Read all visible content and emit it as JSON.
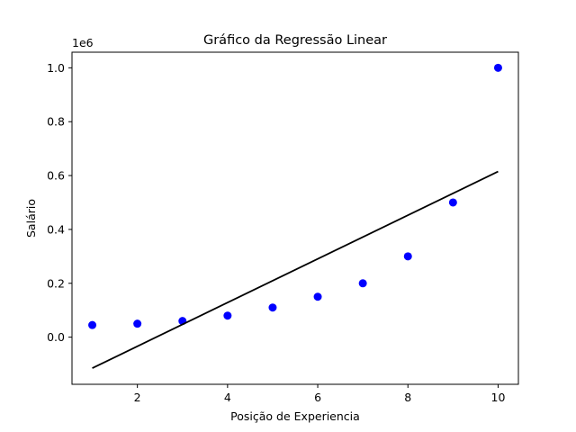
{
  "chart_data": {
    "type": "scatter",
    "title": "Gráfico da Regressão Linear",
    "xlabel": "Posição de Experiencia",
    "ylabel": "Salário",
    "y_offset_label": "1e6",
    "xlim": [
      0.55,
      10.45
    ],
    "ylim": [
      -0.175,
      1.058
    ],
    "x_ticks": [
      2,
      4,
      6,
      8,
      10
    ],
    "x_tick_labels": [
      "2",
      "4",
      "6",
      "8",
      "10"
    ],
    "y_ticks": [
      0.0,
      0.2,
      0.4,
      0.6,
      0.8,
      1.0
    ],
    "y_tick_labels": [
      "0.0",
      "0.2",
      "0.4",
      "0.6",
      "0.8",
      "1.0"
    ],
    "grid": false,
    "series": [
      {
        "type": "scatter",
        "color": "#0000ff",
        "x": [
          1,
          2,
          3,
          4,
          5,
          6,
          7,
          8,
          9,
          10
        ],
        "y": [
          0.045,
          0.05,
          0.06,
          0.08,
          0.11,
          0.15,
          0.2,
          0.3,
          0.5,
          1.0
        ]
      },
      {
        "type": "line",
        "color": "#000000",
        "x": [
          1,
          10
        ],
        "y": [
          -0.115,
          0.615
        ]
      }
    ]
  }
}
